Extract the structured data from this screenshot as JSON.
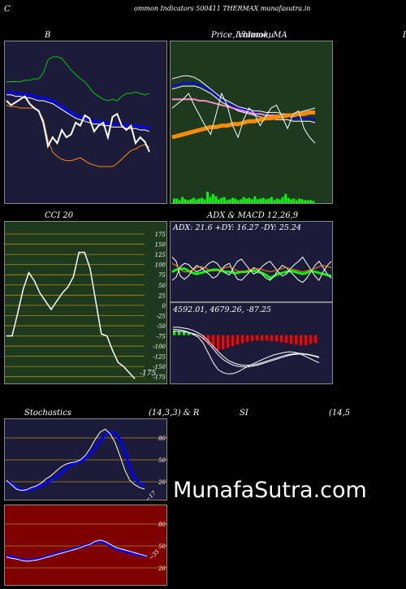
{
  "header": {
    "title": "ommon  Indicators 500411 THERMAX  munafasutra.in",
    "left_char": "C",
    "right_char": "I"
  },
  "watermark": "MunafaSutra.com",
  "colors": {
    "navy": "#1c1c3a",
    "green_bg": "#1e3a1e",
    "dark_red": "#800000",
    "white": "#ffffff",
    "blue": "#0000ff",
    "bright_green": "#00ff00",
    "orange": "#ff8c00",
    "pink": "#ff88cc",
    "grid_orange": "#b8860b"
  },
  "chart_data": [
    {
      "id": "bollinger",
      "type": "line",
      "title": "B",
      "ylim": [
        0,
        100
      ],
      "series": [
        {
          "color": "#00cc00",
          "values": [
            78,
            78,
            78,
            78,
            79,
            79,
            80,
            80,
            84,
            93,
            95,
            95,
            94,
            90,
            86,
            83,
            80,
            78,
            74,
            70,
            68,
            66,
            65,
            66,
            65,
            68,
            70,
            70,
            71,
            70,
            69,
            70
          ]
        },
        {
          "color": "#0000ff",
          "values": [
            71,
            71,
            70,
            70,
            69,
            69,
            68,
            67,
            67,
            66,
            65,
            63,
            61,
            59,
            57,
            55,
            54,
            53,
            52,
            51,
            51,
            50,
            50,
            49,
            49,
            49,
            48,
            48,
            48,
            47,
            47,
            46
          ]
        },
        {
          "color": "#ffffff",
          "values": [
            69,
            69,
            68,
            68,
            67,
            67,
            66,
            65,
            65,
            64,
            63,
            61,
            59,
            57,
            55,
            53,
            52,
            51,
            50,
            49,
            49,
            48,
            48,
            47,
            47,
            47,
            46,
            46,
            46,
            45,
            45,
            44
          ]
        },
        {
          "color": "#ff8c00",
          "values": [
            62,
            61,
            61,
            60,
            60,
            60,
            60,
            58,
            52,
            38,
            30,
            27,
            25,
            24,
            24,
            25,
            26,
            24,
            22,
            21,
            20,
            20,
            20,
            20,
            22,
            25,
            28,
            31,
            32,
            34,
            35,
            33
          ]
        },
        {
          "color": "#ffffff",
          "values": [
            65,
            62,
            64,
            66,
            68,
            63,
            60,
            58,
            50,
            34,
            40,
            36,
            45,
            40,
            42,
            50,
            48,
            55,
            53,
            44,
            48,
            50,
            40,
            54,
            56,
            48,
            45,
            48,
            36,
            40,
            37,
            30
          ]
        }
      ]
    },
    {
      "id": "price_ma",
      "type": "line",
      "title": "Price,  Volume,  MA",
      "overlay_title": "Ichimoku",
      "ylim": [
        0,
        100
      ],
      "series": [
        {
          "color": "#0000ff",
          "values": [
            75,
            76,
            77,
            77,
            77,
            76,
            74,
            72,
            69,
            66,
            64,
            62,
            60,
            59,
            58,
            57,
            56,
            55,
            55,
            54,
            54,
            54,
            53,
            53,
            53,
            53,
            52
          ]
        },
        {
          "color": "#ffffff",
          "values": [
            73,
            74,
            75,
            75,
            75,
            74,
            72,
            70,
            67,
            64,
            62,
            60,
            58,
            57,
            56,
            55,
            54,
            53,
            53,
            52,
            52,
            52,
            51,
            51,
            51,
            51,
            50
          ]
        },
        {
          "color": "#ffffff",
          "values": [
            80,
            81,
            82,
            82,
            81,
            79,
            76,
            73,
            70,
            67,
            65,
            63,
            61,
            60,
            59,
            58,
            58,
            57,
            57,
            57,
            56,
            56,
            56,
            57,
            58,
            59,
            60
          ]
        },
        {
          "color": "#ff88cc",
          "values": [
            66,
            66,
            66,
            66,
            66,
            65,
            65,
            64,
            63,
            62,
            61,
            60,
            59,
            58,
            57,
            56,
            56,
            55,
            55,
            55,
            55,
            55,
            55,
            56,
            56,
            57,
            57
          ]
        },
        {
          "color": "#ff8c00",
          "values": [
            40,
            41,
            42,
            43,
            44,
            45,
            46,
            47,
            47,
            48,
            48,
            49,
            49,
            50,
            51,
            51,
            52,
            53,
            53,
            54,
            54,
            55,
            55,
            56,
            56,
            57,
            57
          ]
        },
        {
          "color": "#ffffff",
          "values": [
            60,
            63,
            66,
            70,
            62,
            55,
            48,
            42,
            56,
            70,
            62,
            48,
            40,
            52,
            60,
            56,
            48,
            54,
            60,
            62,
            54,
            46,
            56,
            58,
            46,
            40,
            36
          ]
        }
      ],
      "volume": [
        6,
        6,
        4,
        8,
        5,
        4,
        5,
        7,
        5,
        6,
        7,
        5,
        15,
        8,
        12,
        9,
        5,
        7,
        8,
        4,
        5,
        7,
        6,
        4,
        5,
        8,
        6,
        7,
        5,
        9,
        5,
        6,
        7,
        5,
        6,
        8,
        4,
        6,
        5,
        8,
        12,
        7,
        5,
        6,
        4,
        6,
        5,
        4,
        4,
        4,
        3
      ]
    },
    {
      "id": "cci",
      "type": "line",
      "title": "CCI 20",
      "ylim": [
        -190,
        200
      ],
      "ticks": [
        "175",
        "150",
        "125",
        "100",
        "75",
        "50",
        "25",
        "0",
        "-25",
        "-50",
        "-75",
        "-100",
        "-125",
        "-150",
        "-175"
      ],
      "last_value": "-175",
      "series": [
        {
          "color": "#ffffff",
          "values": [
            -75,
            -75,
            -20,
            40,
            80,
            60,
            30,
            10,
            -10,
            10,
            30,
            45,
            70,
            130,
            130,
            90,
            10,
            -70,
            -75,
            -110,
            -140,
            -150,
            -165,
            -180
          ]
        }
      ]
    },
    {
      "id": "adx",
      "type": "line",
      "title": "ADX  & MACD 12,26,9",
      "text": "ADX: 21.6   +DY: 16.27 -DY: 25.24",
      "ylim": [
        0,
        60
      ],
      "series": [
        {
          "color": "#00ff00",
          "values": [
            28,
            30,
            31,
            31,
            29,
            27,
            26,
            27,
            28,
            29,
            30,
            30,
            29,
            28,
            28,
            27,
            27,
            28,
            28,
            29,
            29,
            28,
            27,
            25,
            22,
            24,
            26,
            27,
            28,
            29,
            28,
            27,
            26,
            27,
            29,
            28,
            27,
            26,
            25,
            24
          ]
        },
        {
          "color": "#ffffff",
          "values": [
            42,
            38,
            24,
            21,
            24,
            30,
            34,
            32,
            29,
            26,
            22,
            24,
            30,
            34,
            36,
            28,
            21,
            20,
            24,
            28,
            32,
            30,
            26,
            22,
            20,
            24,
            30,
            34,
            32,
            28,
            24,
            20,
            18,
            22,
            28,
            34,
            38,
            32,
            26,
            22
          ]
        },
        {
          "color": "#ffffff",
          "values": [
            20,
            23,
            33,
            36,
            35,
            31,
            28,
            30,
            32,
            36,
            38,
            36,
            31,
            27,
            25,
            32,
            38,
            40,
            35,
            30,
            26,
            28,
            33,
            36,
            38,
            33,
            28,
            24,
            26,
            31,
            35,
            38,
            42,
            36,
            30,
            24,
            20,
            28,
            34,
            38
          ]
        },
        {
          "color": "#ff8c00",
          "values": [
            36,
            34,
            30,
            28,
            28,
            30,
            32,
            33,
            32,
            30,
            29,
            29,
            30,
            32,
            33,
            31,
            29,
            28,
            28,
            30,
            31,
            31,
            30,
            29,
            28,
            29,
            30,
            31,
            32,
            31,
            30,
            29,
            28,
            29,
            30,
            31,
            33,
            34,
            33,
            32
          ]
        }
      ]
    },
    {
      "id": "macd",
      "type": "bar",
      "title": "",
      "text": "4592.01,  4679.26,  -87.25",
      "ylim": [
        -120,
        40
      ],
      "series": [
        {
          "color": "#ffffff",
          "values": [
            15,
            14,
            12,
            8,
            2,
            -5,
            -20,
            -45,
            -70,
            -88,
            -95,
            -98,
            -97,
            -92,
            -85,
            -78,
            -72,
            -66,
            -60,
            -55,
            -50,
            -47,
            -44,
            -42,
            -43,
            -46,
            -52,
            -58,
            -64,
            -70
          ]
        },
        {
          "color": "#ffffff",
          "values": [
            10,
            10,
            9,
            7,
            4,
            0,
            -8,
            -20,
            -35,
            -50,
            -62,
            -70,
            -76,
            -79,
            -80,
            -80,
            -78,
            -75,
            -71,
            -67,
            -63,
            -59,
            -55,
            -51,
            -49,
            -48,
            -48,
            -50,
            -53,
            -57
          ]
        },
        {
          "color": "#ffffff",
          "values": [
            20,
            20,
            18,
            16,
            12,
            6,
            -2,
            -14,
            -28,
            -42,
            -54,
            -64,
            -70,
            -74,
            -76,
            -76,
            -75,
            -72,
            -68,
            -64,
            -60,
            -56,
            -52,
            -49,
            -47,
            -46,
            -47,
            -49,
            -52,
            -55
          ]
        }
      ],
      "histogram": [
        12,
        10,
        9,
        6,
        3,
        -2,
        -14,
        -24,
        -32,
        -38,
        -36,
        -32,
        -28,
        -24,
        -20,
        -17,
        -15,
        -14,
        -14,
        -14,
        -15,
        -16,
        -18,
        -20,
        -22,
        -24,
        -26,
        -26,
        -22,
        -20
      ]
    },
    {
      "id": "stochastics",
      "type": "line",
      "title": "Stochastics",
      "params": "(14,3,3) & R",
      "ylim": [
        0,
        100
      ],
      "ticks": [
        "80",
        "50",
        "20"
      ],
      "last_value": "~17",
      "series": [
        {
          "color": "#0000ff",
          "values": [
            20,
            18,
            12,
            9,
            8,
            10,
            12,
            14,
            18,
            22,
            26,
            32,
            38,
            43,
            46,
            48,
            52,
            58,
            66,
            76,
            84,
            88,
            86,
            78,
            62,
            40,
            25,
            18,
            15
          ]
        },
        {
          "color": "#ffffff",
          "values": [
            22,
            16,
            10,
            8,
            9,
            12,
            14,
            18,
            24,
            28,
            34,
            40,
            44,
            46,
            47,
            50,
            56,
            66,
            78,
            88,
            92,
            86,
            74,
            56,
            36,
            22,
            16,
            12,
            10
          ]
        }
      ]
    },
    {
      "id": "rsi",
      "type": "line",
      "title": "SI",
      "params": "(14,5",
      "ylim": [
        0,
        100
      ],
      "ticks": [
        "80",
        "50",
        "20"
      ],
      "last_value": "~35",
      "series": [
        {
          "color": "#0000ff",
          "values": [
            37,
            35,
            33,
            31,
            30,
            31,
            32,
            34,
            36,
            38,
            40,
            42,
            44,
            46,
            48,
            50,
            52,
            55,
            56,
            54,
            50,
            46,
            44,
            42,
            40,
            38,
            37,
            36
          ]
        },
        {
          "color": "#ffffff",
          "values": [
            35,
            33,
            32,
            30,
            29,
            30,
            31,
            33,
            35,
            37,
            39,
            41,
            43,
            45,
            47,
            50,
            52,
            56,
            58,
            56,
            52,
            48,
            46,
            44,
            42,
            40,
            38,
            36
          ]
        }
      ]
    }
  ]
}
